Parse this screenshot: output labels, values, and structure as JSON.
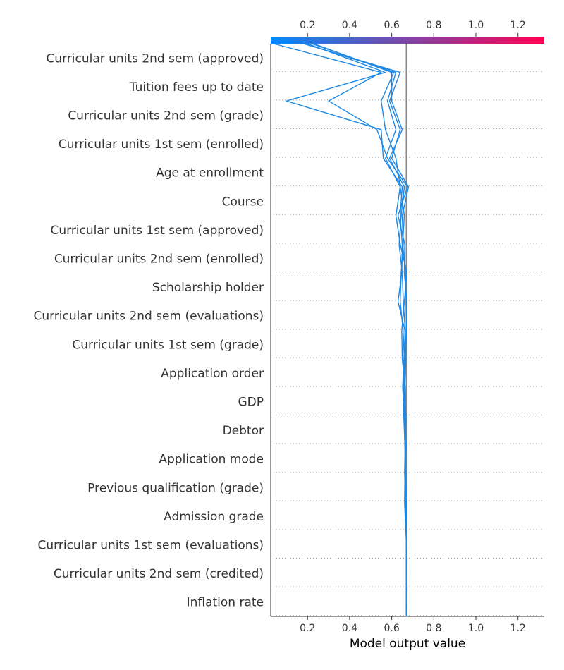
{
  "chart_data": {
    "type": "line",
    "title": "",
    "xlabel": "Model output value",
    "ylabel": "",
    "xlim": [
      0.025,
      1.325
    ],
    "x_ticks": [
      "0.2",
      "0.4",
      "0.6",
      "0.8",
      "1.0",
      "1.2"
    ],
    "base_value": 0.67,
    "colorbar": {
      "from": "#008bfb",
      "to": "#ff0052"
    },
    "line_color": "#1e88e5",
    "grid": "dotted horizontal",
    "features": [
      "Curricular units 2nd sem (approved)",
      "Tuition fees up to date",
      "Curricular units 2nd sem (grade)",
      "Curricular units 1st sem (enrolled)",
      "Age at enrollment",
      "Course",
      "Curricular units 1st sem (approved)",
      "Curricular units 2nd sem (enrolled)",
      "Scholarship holder",
      "Curricular units 2nd sem (evaluations)",
      "Curricular units 1st sem (grade)",
      "Application order",
      "GDP",
      "Debtor",
      "Application mode",
      "Previous qualification (grade)",
      "Admission grade",
      "Curricular units 1st sem (evaluations)",
      "Curricular units 2nd sem (credited)",
      "Inflation rate"
    ],
    "series": [
      {
        "values": [
          0.672,
          0.673,
          0.671,
          0.669,
          0.664,
          0.668,
          0.663,
          0.657,
          0.658,
          0.66,
          0.654,
          0.64,
          0.645,
          0.655,
          0.65,
          0.68,
          0.6,
          0.64,
          0.59,
          0.64,
          0.18
        ]
      },
      {
        "values": [
          0.671,
          0.671,
          0.672,
          0.67,
          0.667,
          0.665,
          0.669,
          0.662,
          0.66,
          0.668,
          0.662,
          0.63,
          0.648,
          0.65,
          0.64,
          0.65,
          0.56,
          0.55,
          0.1,
          0.57,
          0.2
        ]
      },
      {
        "values": [
          0.669,
          0.67,
          0.669,
          0.671,
          0.668,
          0.661,
          0.664,
          0.668,
          0.655,
          0.662,
          0.669,
          0.672,
          0.66,
          0.662,
          0.63,
          0.675,
          0.58,
          0.53,
          0.3,
          0.55,
          0.04
        ]
      },
      {
        "values": [
          0.67,
          0.671,
          0.673,
          0.667,
          0.661,
          0.663,
          0.668,
          0.666,
          0.664,
          0.65,
          0.648,
          0.66,
          0.672,
          0.64,
          0.62,
          0.64,
          0.62,
          0.57,
          0.55,
          0.61,
          0.22
        ]
      },
      {
        "values": [
          0.673,
          0.669,
          0.67,
          0.672,
          0.67,
          0.666,
          0.662,
          0.66,
          0.652,
          0.658,
          0.664,
          0.655,
          0.65,
          0.635,
          0.645,
          0.66,
          0.59,
          0.65,
          0.6,
          0.6,
          0.23
        ]
      },
      {
        "values": [
          0.671,
          0.672,
          0.671,
          0.67,
          0.669,
          0.668,
          0.666,
          0.664,
          0.662,
          0.666,
          0.67,
          0.668,
          0.666,
          0.652,
          0.66,
          0.64,
          0.57,
          0.62,
          0.58,
          0.62,
          0.19
        ]
      }
    ]
  }
}
